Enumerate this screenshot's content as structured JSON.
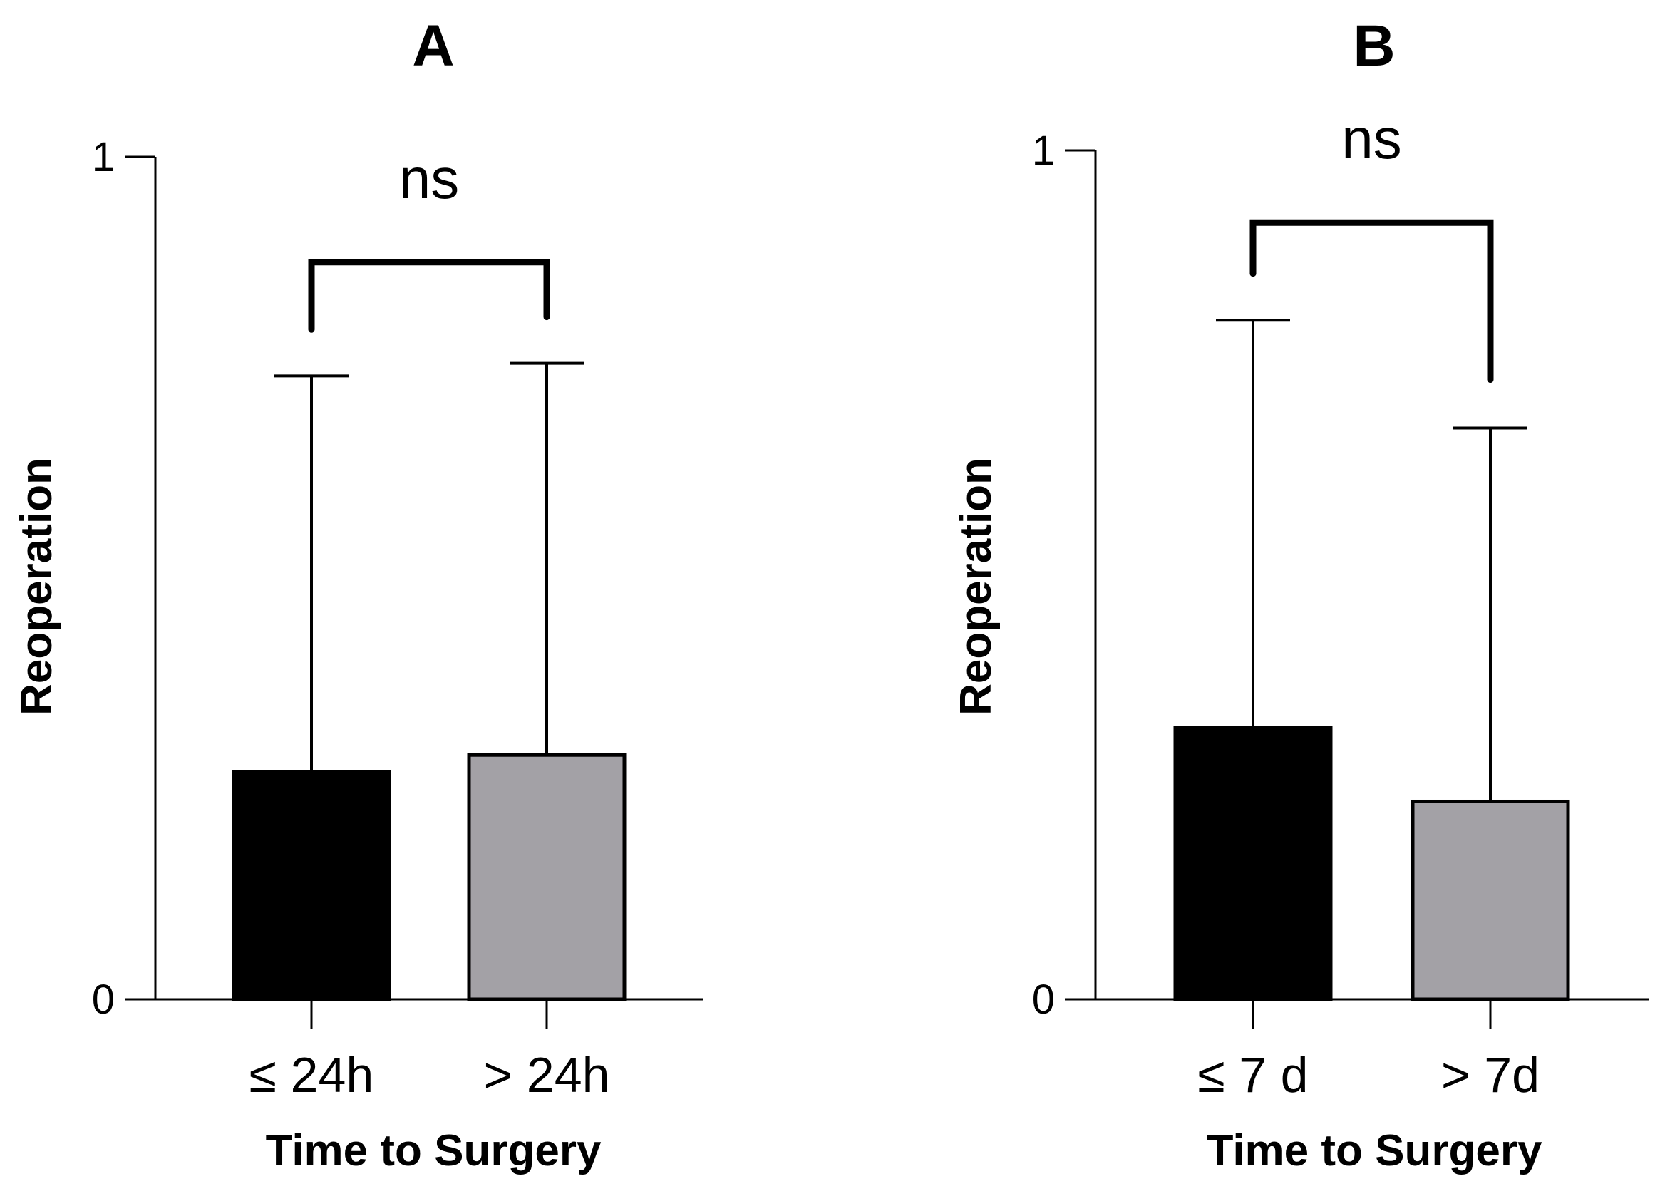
{
  "chart_data": [
    {
      "type": "bar",
      "panel": "A",
      "title": "A",
      "xlabel": "Time to Surgery",
      "ylabel": "Reoperation",
      "ylim": [
        0,
        1
      ],
      "yticks": [
        {
          "value": 0,
          "label": "0"
        },
        {
          "value": 1,
          "label": "1"
        }
      ],
      "categories": [
        "≤ 24h",
        "> 24h"
      ],
      "values": [
        0.27,
        0.29
      ],
      "error_upper": [
        0.74,
        0.755
      ],
      "colors": [
        "#000000",
        "#a3a1a6"
      ],
      "significance": {
        "label": "ns",
        "between": [
          0,
          1
        ],
        "bracket_level": 0.875,
        "left_leg_end": 0.795,
        "right_leg_end": 0.81
      }
    },
    {
      "type": "bar",
      "panel": "B",
      "title": "B",
      "xlabel": "Time to Surgery",
      "ylabel": "Reoperation",
      "ylim": [
        0,
        1
      ],
      "yticks": [
        {
          "value": 0,
          "label": "0"
        },
        {
          "value": 1,
          "label": "1"
        }
      ],
      "categories": [
        "≤ 7 d",
        "> 7d"
      ],
      "values": [
        0.32,
        0.233
      ],
      "error_upper": [
        0.8,
        0.673
      ],
      "colors": [
        "#000000",
        "#a3a1a6"
      ],
      "significance": {
        "label": "ns",
        "between": [
          0,
          1
        ],
        "bracket_level": 0.915,
        "left_leg_end": 0.855,
        "right_leg_end": 0.73
      }
    }
  ]
}
